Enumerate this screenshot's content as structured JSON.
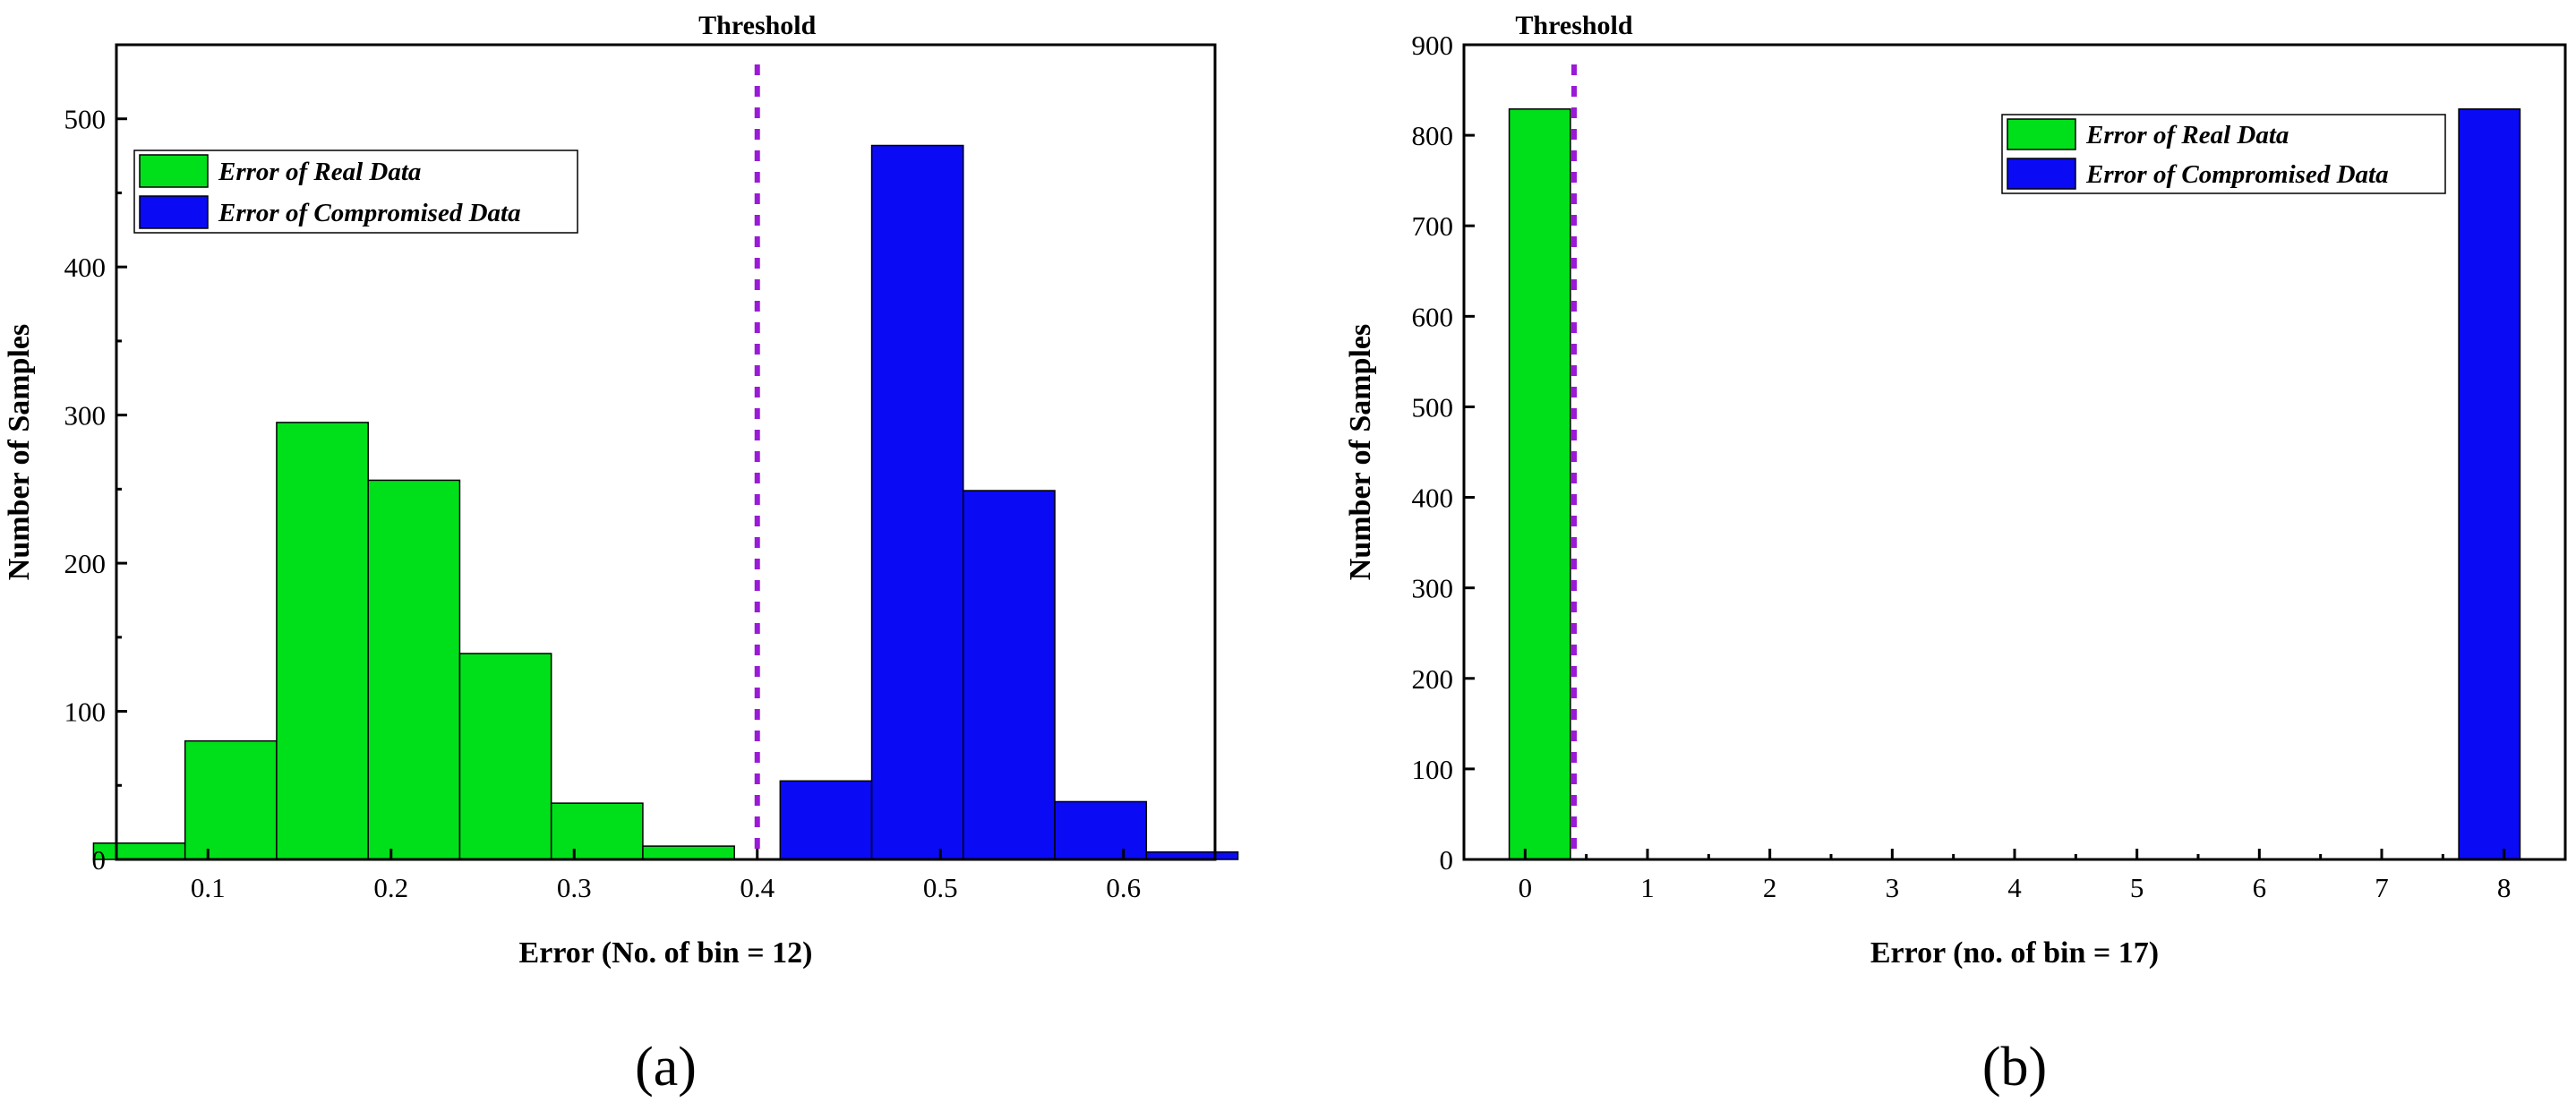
{
  "chart_data": [
    {
      "id": "a",
      "type": "bar",
      "panel_label": "(a)",
      "xlabel": "Error (No. of bin = 12)",
      "ylabel": "Number of Samples",
      "threshold": {
        "label": "Threshold",
        "x": 0.4,
        "color": "#9a1ad6"
      },
      "xlim": [
        0.05,
        0.65
      ],
      "ylim": [
        0,
        550
      ],
      "xticks": [
        0.1,
        0.2,
        0.3,
        0.4,
        0.5,
        0.6
      ],
      "xtick_labels": [
        "0.1",
        "0.2",
        "0.3",
        "0.4",
        "0.5",
        "0.6"
      ],
      "yticks": [
        0,
        100,
        200,
        300,
        400,
        500
      ],
      "ytick_labels": [
        "0",
        "100",
        "200",
        "300",
        "400",
        "500"
      ],
      "bar_width": 0.025,
      "legend_position": "upper-left",
      "series": [
        {
          "name": "Error of Real Data",
          "color": "#00e01a",
          "x": [
            0.0625,
            0.1125,
            0.1625,
            0.2125,
            0.2625,
            0.3125,
            0.3625
          ],
          "values": [
            11,
            80,
            295,
            256,
            139,
            38,
            9
          ]
        },
        {
          "name": "Error of Compromised Data",
          "color": "#0a0af5",
          "x": [
            0.4375,
            0.4875,
            0.5375,
            0.5875,
            0.6375
          ],
          "values": [
            53,
            482,
            249,
            39,
            5
          ]
        }
      ]
    },
    {
      "id": "b",
      "type": "bar",
      "panel_label": "(b)",
      "xlabel": "Error (no. of bin = 17)",
      "ylabel": "Number of Samples",
      "threshold": {
        "label": "Threshold",
        "x": 0.4,
        "color": "#9a1ad6"
      },
      "xlim": [
        -0.5,
        8.5
      ],
      "ylim": [
        0,
        900
      ],
      "xticks": [
        0,
        1,
        2,
        3,
        4,
        5,
        6,
        7,
        8
      ],
      "xtick_labels": [
        "0",
        "1",
        "2",
        "3",
        "4",
        "5",
        "6",
        "7",
        "8"
      ],
      "yticks": [
        0,
        100,
        200,
        300,
        400,
        500,
        600,
        700,
        800,
        900
      ],
      "ytick_labels": [
        "0",
        "100",
        "200",
        "300",
        "400",
        "500",
        "600",
        "700",
        "800",
        "900"
      ],
      "bar_width": 0.25,
      "legend_position": "upper-right",
      "series": [
        {
          "name": "Error of Real Data",
          "color": "#00e01a",
          "x": [
            0.12
          ],
          "values": [
            829
          ]
        },
        {
          "name": "Error of Compromised Data",
          "color": "#0a0af5",
          "x": [
            7.88
          ],
          "values": [
            829
          ]
        }
      ]
    }
  ]
}
